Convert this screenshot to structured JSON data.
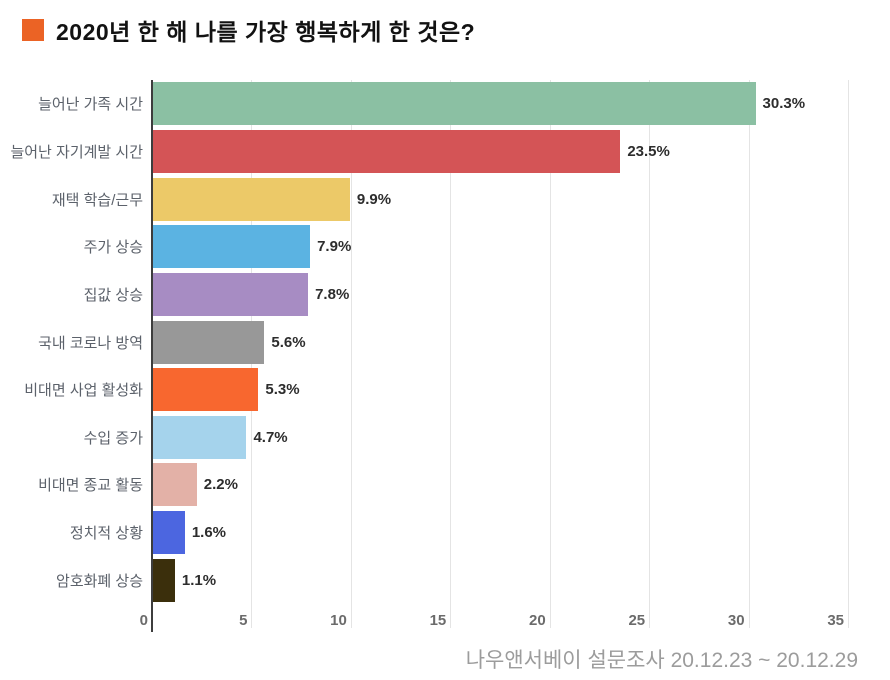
{
  "title": {
    "text": "2020년 한 해 나를 가장 행복하게 한 것은?",
    "bullet_color": "#eb6325"
  },
  "footer": {
    "source_text": "나우앤서베이 설문조사 20.12.23 ~ 20.12.29"
  },
  "chart_data": {
    "type": "bar",
    "orientation": "horizontal",
    "title": "2020년 한 해 나를 가장 행복하게 한 것은?",
    "xlabel": "",
    "ylabel": "",
    "xlim": [
      0,
      35
    ],
    "x_ticks": [
      "0",
      "5",
      "10",
      "15",
      "20",
      "25",
      "30",
      "35"
    ],
    "x_tick_values": [
      0,
      5,
      10,
      15,
      20,
      25,
      30,
      35
    ],
    "grid": true,
    "legend": false,
    "categories": [
      "늘어난 가족 시간",
      "늘어난 자기계발 시간",
      "재택 학습/근무",
      "주가 상승",
      "집값 상승",
      "국내 코로나 방역",
      "비대면 사업 활성화",
      "수입 증가",
      "비대면 종교 활동",
      "정치적 상황",
      "암호화폐 상승"
    ],
    "values": [
      30.3,
      23.5,
      9.9,
      7.9,
      7.8,
      5.6,
      5.3,
      4.7,
      2.2,
      1.6,
      1.1
    ],
    "value_labels": [
      "30.3%",
      "23.5%",
      "9.9%",
      "7.9%",
      "7.8%",
      "5.6%",
      "5.3%",
      "4.7%",
      "2.2%",
      "1.6%",
      "1.1%"
    ],
    "bar_colors": [
      "#8bc0a3",
      "#d45456",
      "#ecc968",
      "#5bb3e2",
      "#a78cc3",
      "#989898",
      "#f8672f",
      "#a5d3ec",
      "#e3b1a7",
      "#4c66e0",
      "#3b2f0c"
    ],
    "colors": {
      "gridline": "#e4e4e4",
      "axis_line": "#3d3d3d",
      "category_label": "#5c626b",
      "value_label": "#2d2d2d",
      "tick_label": "#6b6b6b"
    }
  }
}
